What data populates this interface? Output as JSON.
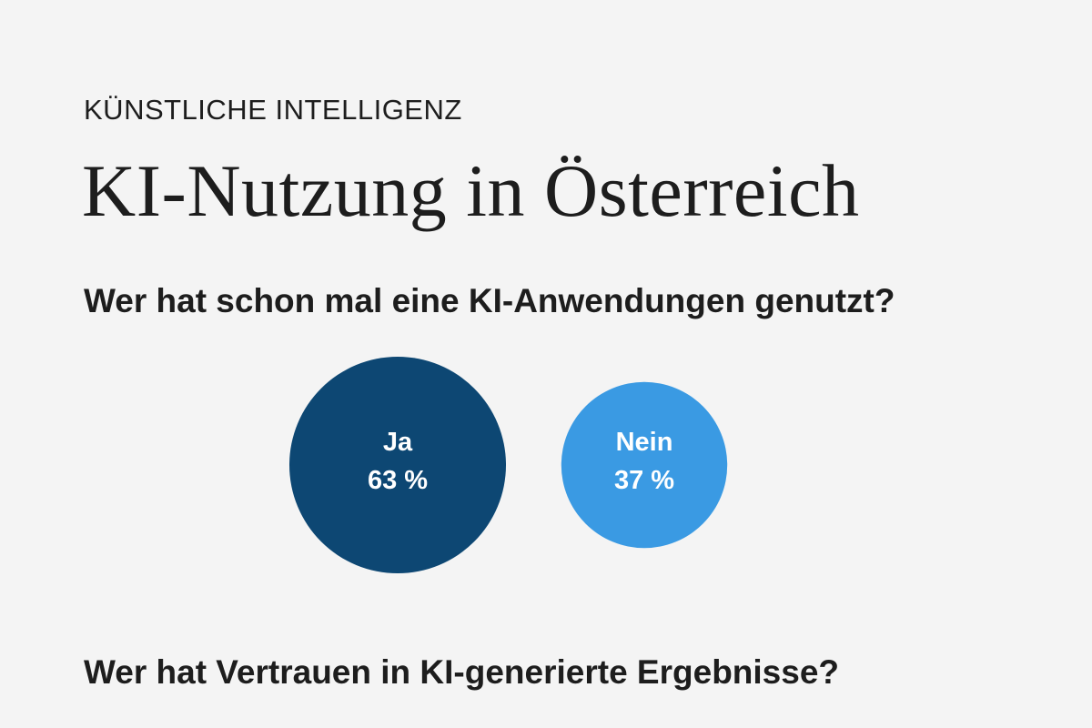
{
  "kicker": "KÜNSTLICHE INTELLIGENZ",
  "headline": "KI-Nutzung in Österreich",
  "question_1": "Wer hat schon mal eine KI-Anwendungen genutzt?",
  "question_2": "Wer hat Vertrauen in KI-generierte Ergebnisse?",
  "chart_data": {
    "type": "bubble",
    "title": "Wer hat schon mal eine KI-Anwendungen genutzt?",
    "unit": "%",
    "items": [
      {
        "label": "Ja",
        "value": 63,
        "display": "63 %",
        "color": "#0d4773"
      },
      {
        "label": "Nein",
        "value": 37,
        "display": "37 %",
        "color": "#3a9ae3"
      }
    ]
  }
}
